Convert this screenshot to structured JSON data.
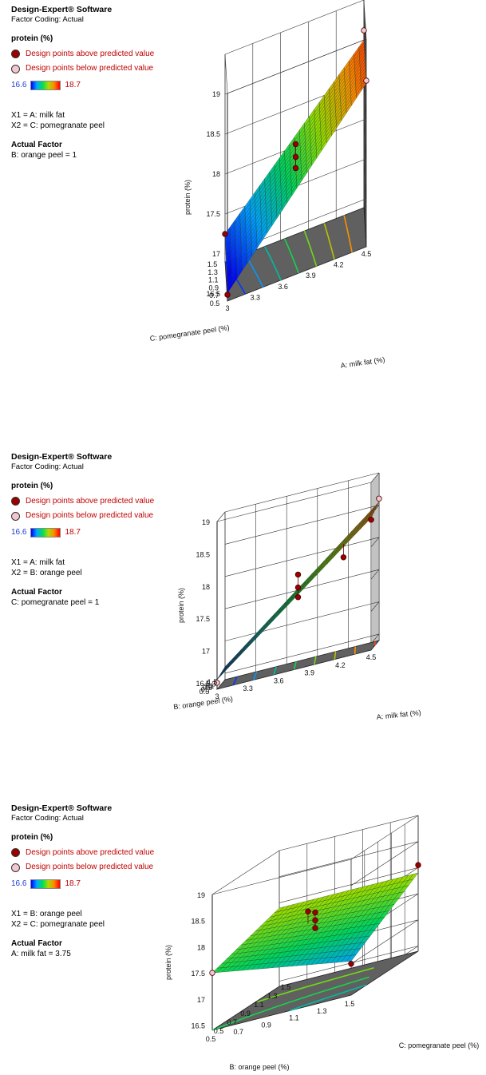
{
  "chart_data": [
    {
      "type": "surface",
      "software": "Design-Expert® Software",
      "factor_coding": "Factor Coding: Actual",
      "response": "protein (%)",
      "legend": {
        "above": "Design points above predicted value",
        "below": "Design points below predicted value",
        "color_min": "16.6",
        "color_max": "18.7"
      },
      "x1": "X1 = A: milk fat",
      "x2": "X2 = C: pomegranate peel",
      "actual_factor_title": "Actual Factor",
      "actual_factor": "B: orange peel = 1",
      "xlabel": "A: milk fat (%)",
      "ylabel": "C: pomegranate peel (%)",
      "zlabel": "protein (%)",
      "x_ticks": [
        "3",
        "3.3",
        "3.6",
        "3.9",
        "4.2",
        "4.5"
      ],
      "y_ticks": [
        "0.5",
        "0.7",
        "0.9",
        "1.1",
        "1.3",
        "1.5"
      ],
      "z_ticks": [
        "16.5",
        "17",
        "17.5",
        "18",
        "18.5",
        "19"
      ],
      "xlim": [
        3,
        4.5
      ],
      "ylim": [
        0.5,
        1.5
      ],
      "zlim": [
        16.4,
        19
      ],
      "corners": {
        "x0y0": 16.5,
        "x1y0": 18.45,
        "x0y1": 16.75,
        "x1y1": 18.5
      },
      "points": [
        {
          "x": 3.0,
          "y": 0.5,
          "z": 16.48,
          "above": true
        },
        {
          "x": 3.0,
          "y": 1.5,
          "z": 16.75,
          "above": true
        },
        {
          "x": 4.5,
          "y": 1.5,
          "z": 18.62,
          "above": false
        },
        {
          "x": 4.5,
          "y": 0.5,
          "z": 18.48,
          "above": false
        },
        {
          "x": 3.75,
          "y": 1.0,
          "z": 17.78,
          "above": true
        },
        {
          "x": 3.75,
          "y": 1.0,
          "z": 17.62,
          "above": true
        },
        {
          "x": 3.75,
          "y": 1.0,
          "z": 17.48,
          "above": true
        }
      ]
    },
    {
      "type": "surface",
      "software": "Design-Expert® Software",
      "factor_coding": "Factor Coding: Actual",
      "response": "protein (%)",
      "legend": {
        "above": "Design points above predicted value",
        "below": "Design points below predicted value",
        "color_min": "16.6",
        "color_max": "18.7"
      },
      "x1": "X1 = A: milk fat",
      "x2": "X2 = B: orange peel",
      "actual_factor_title": "Actual Factor",
      "actual_factor": "C: pomegranate peel = 1",
      "xlabel": "A: milk fat (%)",
      "ylabel": "B: orange peel (%)",
      "zlabel": "protein (%)",
      "x_ticks": [
        "3",
        "3.3",
        "3.6",
        "3.9",
        "4.2",
        "4.5"
      ],
      "y_ticks": [
        "0.5",
        "0.7",
        "0.9",
        "1.1",
        "1.3",
        "1.5"
      ],
      "z_ticks": [
        "16.5",
        "17",
        "17.5",
        "18",
        "18.5",
        "19"
      ],
      "xlim": [
        3,
        4.5
      ],
      "ylim": [
        0.5,
        1.5
      ],
      "zlim": [
        16.4,
        19
      ],
      "corners": {
        "x0y0": 16.55,
        "x1y0": 18.45,
        "x0y1": 16.6,
        "x1y1": 18.55
      },
      "points": [
        {
          "x": 3.0,
          "y": 0.5,
          "z": 16.5,
          "above": false
        },
        {
          "x": 4.5,
          "y": 0.5,
          "z": 18.42,
          "above": true
        },
        {
          "x": 4.5,
          "y": 1.5,
          "z": 18.6,
          "above": false
        },
        {
          "x": 3.75,
          "y": 1.0,
          "z": 17.8,
          "above": true
        },
        {
          "x": 3.75,
          "y": 1.0,
          "z": 17.6,
          "above": true
        },
        {
          "x": 3.75,
          "y": 1.0,
          "z": 17.45,
          "above": true
        },
        {
          "x": 4.2,
          "y": 0.9,
          "z": 17.9,
          "above": true
        }
      ]
    },
    {
      "type": "surface",
      "software": "Design-Expert® Software",
      "factor_coding": "Factor Coding: Actual",
      "response": "protein (%)",
      "legend": {
        "above": "Design points above predicted value",
        "below": "Design points below predicted value",
        "color_min": "16.6",
        "color_max": "18.7"
      },
      "x1": "X1 = B: orange peel",
      "x2": "X2 = C: pomegranate peel",
      "actual_factor_title": "Actual Factor",
      "actual_factor": "A: milk fat = 3.75",
      "xlabel": "B: orange peel (%)",
      "ylabel": "C: pomegranate peel (%)",
      "zlabel": "protein (%)",
      "x_ticks": [
        "0.5",
        "0.7",
        "0.9",
        "1.1",
        "1.3",
        "1.5"
      ],
      "y_ticks": [
        "0.5",
        "0.7",
        "0.9",
        "1.1",
        "1.3",
        "1.5"
      ],
      "z_ticks": [
        "16.5",
        "17",
        "17.5",
        "18",
        "18.5",
        "19"
      ],
      "xlim": [
        0.5,
        1.5
      ],
      "ylim": [
        0.5,
        1.5
      ],
      "zlim": [
        16.4,
        19
      ],
      "corners": {
        "x0y0": 17.5,
        "x1y0": 17.05,
        "x0y1": 17.9,
        "x1y1": 17.9
      },
      "points": [
        {
          "x": 0.5,
          "y": 0.5,
          "z": 17.5,
          "above": false
        },
        {
          "x": 0.9,
          "y": 1.1,
          "z": 17.9,
          "above": true
        },
        {
          "x": 1.0,
          "y": 1.0,
          "z": 17.9,
          "above": true
        },
        {
          "x": 1.0,
          "y": 1.0,
          "z": 17.75,
          "above": true
        },
        {
          "x": 1.0,
          "y": 1.0,
          "z": 17.6,
          "above": true
        },
        {
          "x": 1.5,
          "y": 0.5,
          "z": 17.0,
          "above": true
        },
        {
          "x": 1.5,
          "y": 1.5,
          "z": 18.05,
          "above": true
        }
      ]
    }
  ]
}
